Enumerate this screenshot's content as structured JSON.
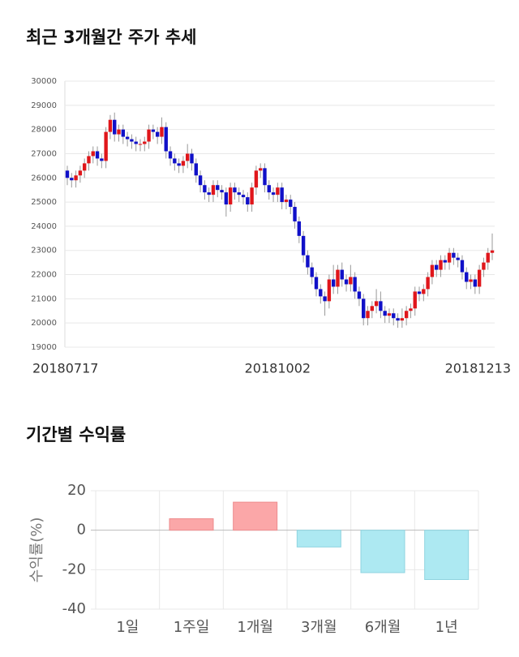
{
  "chart_data": [
    {
      "type": "candlestick",
      "title": "최근 3개월간 주가 추세",
      "categories": [
        "20180717",
        null,
        null,
        null,
        null,
        null,
        null,
        null,
        null,
        null,
        null,
        null,
        null,
        null,
        null,
        null,
        null,
        null,
        null,
        null,
        null,
        null,
        null,
        null,
        null,
        null,
        null,
        null,
        null,
        null,
        null,
        null,
        null,
        null,
        null,
        null,
        null,
        null,
        null,
        null,
        null,
        null,
        null,
        null,
        null,
        null,
        null,
        null,
        null,
        "20181002",
        null,
        null,
        null,
        null,
        null,
        null,
        null,
        null,
        null,
        null,
        null,
        null,
        null,
        null,
        null,
        null,
        null,
        null,
        null,
        null,
        null,
        null,
        null,
        null,
        null,
        null,
        null,
        null,
        null,
        null,
        null,
        null,
        null,
        null,
        null,
        null,
        null,
        null,
        null,
        null,
        null,
        null,
        null,
        null,
        null,
        null,
        null,
        null,
        null,
        "20181213"
      ],
      "open": [
        26300,
        26000,
        25900,
        26100,
        26300,
        26600,
        26900,
        27100,
        26800,
        26700,
        27900,
        28400,
        27800,
        28000,
        27700,
        27600,
        27500,
        27400,
        27400,
        27500,
        28000,
        27900,
        27700,
        28100,
        27100,
        26800,
        26600,
        26500,
        26700,
        27000,
        26600,
        26100,
        25700,
        25400,
        25300,
        25700,
        25500,
        25400,
        24900,
        25600,
        25400,
        25300,
        25200,
        24900,
        25600,
        26300,
        26400,
        25700,
        25400,
        25300,
        25600,
        25000,
        25100,
        24800,
        24200,
        23600,
        22800,
        22300,
        21900,
        21400,
        21100,
        20900,
        21800,
        21500,
        22200,
        21800,
        21600,
        21900,
        21300,
        21000,
        20200,
        20500,
        20700,
        20900,
        20500,
        20300,
        20400,
        20200,
        20100,
        20200,
        20500,
        20600,
        21300,
        21200,
        21400,
        21900,
        22400,
        22200,
        22600,
        22500,
        22900,
        22700,
        22600,
        22100,
        21700,
        21800,
        21500,
        22200,
        22500,
        22900
      ],
      "high": [
        26500,
        26200,
        26300,
        26500,
        26800,
        27100,
        27300,
        27300,
        27000,
        28100,
        28600,
        28700,
        28200,
        28200,
        27900,
        27800,
        27700,
        27600,
        27700,
        28200,
        28200,
        28100,
        28500,
        28300,
        27300,
        27000,
        26800,
        26900,
        27400,
        27200,
        26800,
        26300,
        25900,
        25600,
        25900,
        25900,
        25700,
        25600,
        25800,
        25800,
        25600,
        25500,
        25400,
        25800,
        26500,
        26600,
        26600,
        25900,
        25600,
        25800,
        25800,
        25300,
        25300,
        25000,
        24400,
        23800,
        23000,
        22500,
        22100,
        21600,
        21300,
        22000,
        22400,
        22400,
        22500,
        22000,
        22400,
        22100,
        21500,
        21200,
        20700,
        20900,
        21400,
        21300,
        20700,
        20600,
        20600,
        20400,
        20600,
        20700,
        20800,
        21500,
        21500,
        21600,
        22100,
        22600,
        22600,
        22800,
        22800,
        23100,
        23100,
        22900,
        22800,
        22300,
        22000,
        22000,
        22400,
        22700,
        23100,
        23700
      ],
      "low": [
        25700,
        25600,
        25600,
        25800,
        26000,
        26300,
        26600,
        26500,
        26400,
        26400,
        27600,
        27500,
        27500,
        27400,
        27300,
        27200,
        27100,
        27100,
        27100,
        27200,
        27600,
        27400,
        27400,
        26800,
        26500,
        26300,
        26200,
        26200,
        26400,
        26300,
        25800,
        25400,
        25100,
        25000,
        25000,
        25200,
        25100,
        24400,
        24600,
        25100,
        25000,
        24900,
        24600,
        24600,
        25300,
        26000,
        25400,
        25100,
        25000,
        25000,
        24700,
        24700,
        24500,
        23900,
        23300,
        22500,
        22000,
        21600,
        21100,
        20800,
        20300,
        20600,
        21200,
        21200,
        21500,
        21300,
        21300,
        21000,
        20700,
        19900,
        19900,
        20200,
        20400,
        20200,
        20000,
        20000,
        19900,
        19800,
        19800,
        19900,
        20200,
        20300,
        20900,
        20900,
        21100,
        21600,
        21900,
        21900,
        22200,
        22200,
        22400,
        22300,
        21800,
        21400,
        21400,
        21200,
        21200,
        21900,
        22200,
        22600
      ],
      "close": [
        26000,
        25900,
        26100,
        26300,
        26600,
        26900,
        27100,
        26800,
        26700,
        27900,
        28400,
        27800,
        28000,
        27700,
        27600,
        27500,
        27400,
        27400,
        27500,
        28000,
        27900,
        27700,
        28100,
        27100,
        26800,
        26600,
        26500,
        26700,
        27000,
        26600,
        26100,
        25700,
        25400,
        25300,
        25700,
        25500,
        25400,
        24900,
        25600,
        25400,
        25300,
        25200,
        24900,
        25600,
        26300,
        26400,
        25700,
        25400,
        25300,
        25600,
        25000,
        25100,
        24800,
        24200,
        23600,
        22800,
        22300,
        21900,
        21400,
        21100,
        20900,
        21800,
        21500,
        22200,
        21800,
        21600,
        21900,
        21300,
        21000,
        20200,
        20500,
        20700,
        20900,
        20500,
        20300,
        20400,
        20200,
        20100,
        20200,
        20500,
        20600,
        21300,
        21200,
        21400,
        21900,
        22400,
        22200,
        22600,
        22500,
        22900,
        22700,
        22600,
        22100,
        21700,
        21800,
        21500,
        22200,
        22500,
        22900,
        23000
      ],
      "up_color": "#e0161b",
      "down_color": "#1010c8",
      "ylim": [
        19000,
        30000
      ],
      "yticks": [
        19000,
        20000,
        21000,
        22000,
        23000,
        24000,
        25000,
        26000,
        27000,
        28000,
        29000,
        30000
      ],
      "grid": true
    },
    {
      "type": "bar",
      "title": "기간별 수익률",
      "y_label": "수익률(%)",
      "categories": [
        "1일",
        "1주일",
        "1개월",
        "3개월",
        "6개월",
        "1년"
      ],
      "values": [
        0,
        5.8,
        14.2,
        -8.5,
        -21.5,
        -25
      ],
      "positive_color": "#fba7a8",
      "negative_color": "#ade9f2",
      "ylim": [
        -40,
        20
      ],
      "yticks": [
        -40,
        -20,
        0,
        20
      ],
      "grid": true
    }
  ]
}
